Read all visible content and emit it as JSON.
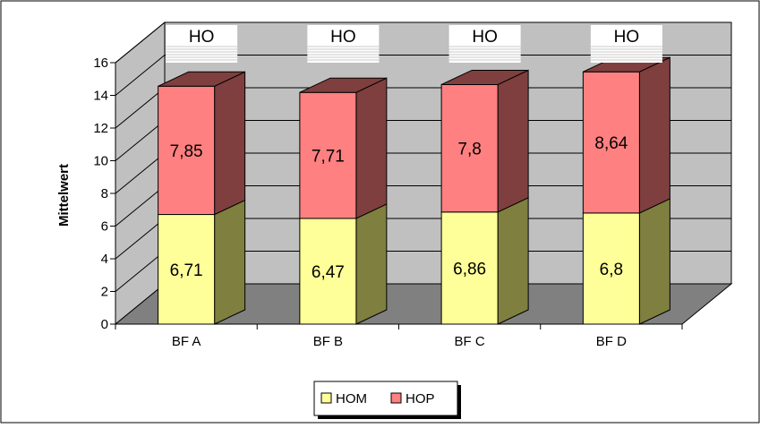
{
  "chart_data": {
    "type": "bar",
    "stacked": true,
    "three_d": true,
    "categories": [
      "BF A",
      "BF B",
      "BF C",
      "BF D"
    ],
    "series": [
      {
        "name": "HOM",
        "values": [
          6.71,
          6.47,
          6.86,
          6.8
        ],
        "value_labels": [
          "6,71",
          "6,47",
          "6,86",
          "6,8"
        ],
        "color": "#FFFF99",
        "side_color": "#7F7F3F"
      },
      {
        "name": "HOP",
        "values": [
          7.85,
          7.71,
          7.8,
          8.64
        ],
        "value_labels": [
          "7,85",
          "7,71",
          "7,8",
          "8,64"
        ],
        "color": "#FF8080",
        "side_color": "#7F3F3F"
      }
    ],
    "top_labels": [
      "HO",
      "HO",
      "HO",
      "HO"
    ],
    "ylabel": "Mittelwert",
    "ylim": [
      0,
      16
    ],
    "yticks": [
      0,
      2,
      4,
      6,
      8,
      10,
      12,
      14,
      16
    ],
    "grid": true,
    "legend": {
      "position": "bottom-center",
      "entries": [
        "HOM",
        "HOP"
      ]
    },
    "colors": {
      "wall": "#C0C0C0",
      "floor": "#808080",
      "border": "#000000"
    }
  }
}
